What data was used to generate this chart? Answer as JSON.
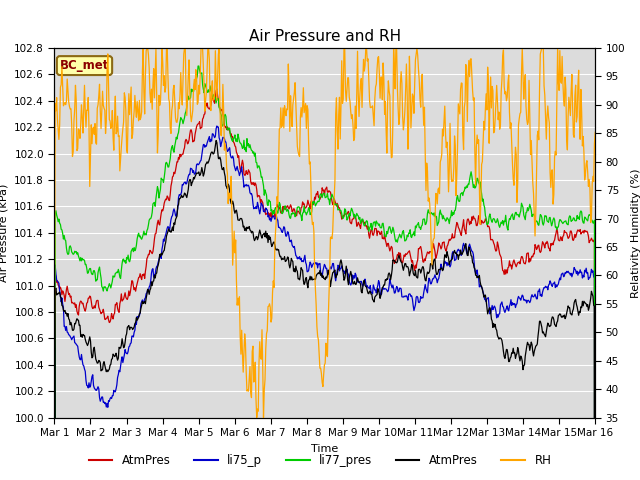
{
  "title": "Air Pressure and RH",
  "xlabel": "Time",
  "ylabel_left": "Air Pressure (kPa)",
  "ylabel_right": "Relativity Humidity (%)",
  "station_label": "BC_met",
  "ylim_left": [
    100.0,
    102.8
  ],
  "ylim_right": [
    35,
    100
  ],
  "yticks_left": [
    100.0,
    100.2,
    100.4,
    100.6,
    100.8,
    101.0,
    101.2,
    101.4,
    101.6,
    101.8,
    102.0,
    102.2,
    102.4,
    102.6,
    102.8
  ],
  "yticks_right": [
    35,
    40,
    45,
    50,
    55,
    60,
    65,
    70,
    75,
    80,
    85,
    90,
    95,
    100
  ],
  "xtick_labels": [
    "Mar 1",
    "Mar 2",
    "Mar 3",
    "Mar 4",
    "Mar 5",
    "Mar 6",
    "Mar 7",
    "Mar 8",
    "Mar 9",
    "Mar 10",
    "Mar 11",
    "Mar 12",
    "Mar 13",
    "Mar 14",
    "Mar 15",
    "Mar 16"
  ],
  "n_days": 15,
  "pts_per_day": 48,
  "colors": {
    "AtmPres_red": "#cc0000",
    "li75_p": "#0000cc",
    "li77_pres": "#00cc00",
    "AtmPres_black": "#000000",
    "RH": "#ffa500"
  },
  "legend_labels": [
    "AtmPres",
    "li75_p",
    "li77_pres",
    "AtmPres",
    "RH"
  ],
  "background_color": "#dcdcdc",
  "fig_background": "#ffffff",
  "grid_color": "#ffffff",
  "title_fontsize": 11,
  "label_fontsize": 8,
  "tick_fontsize": 7.5,
  "legend_fontsize": 8.5
}
